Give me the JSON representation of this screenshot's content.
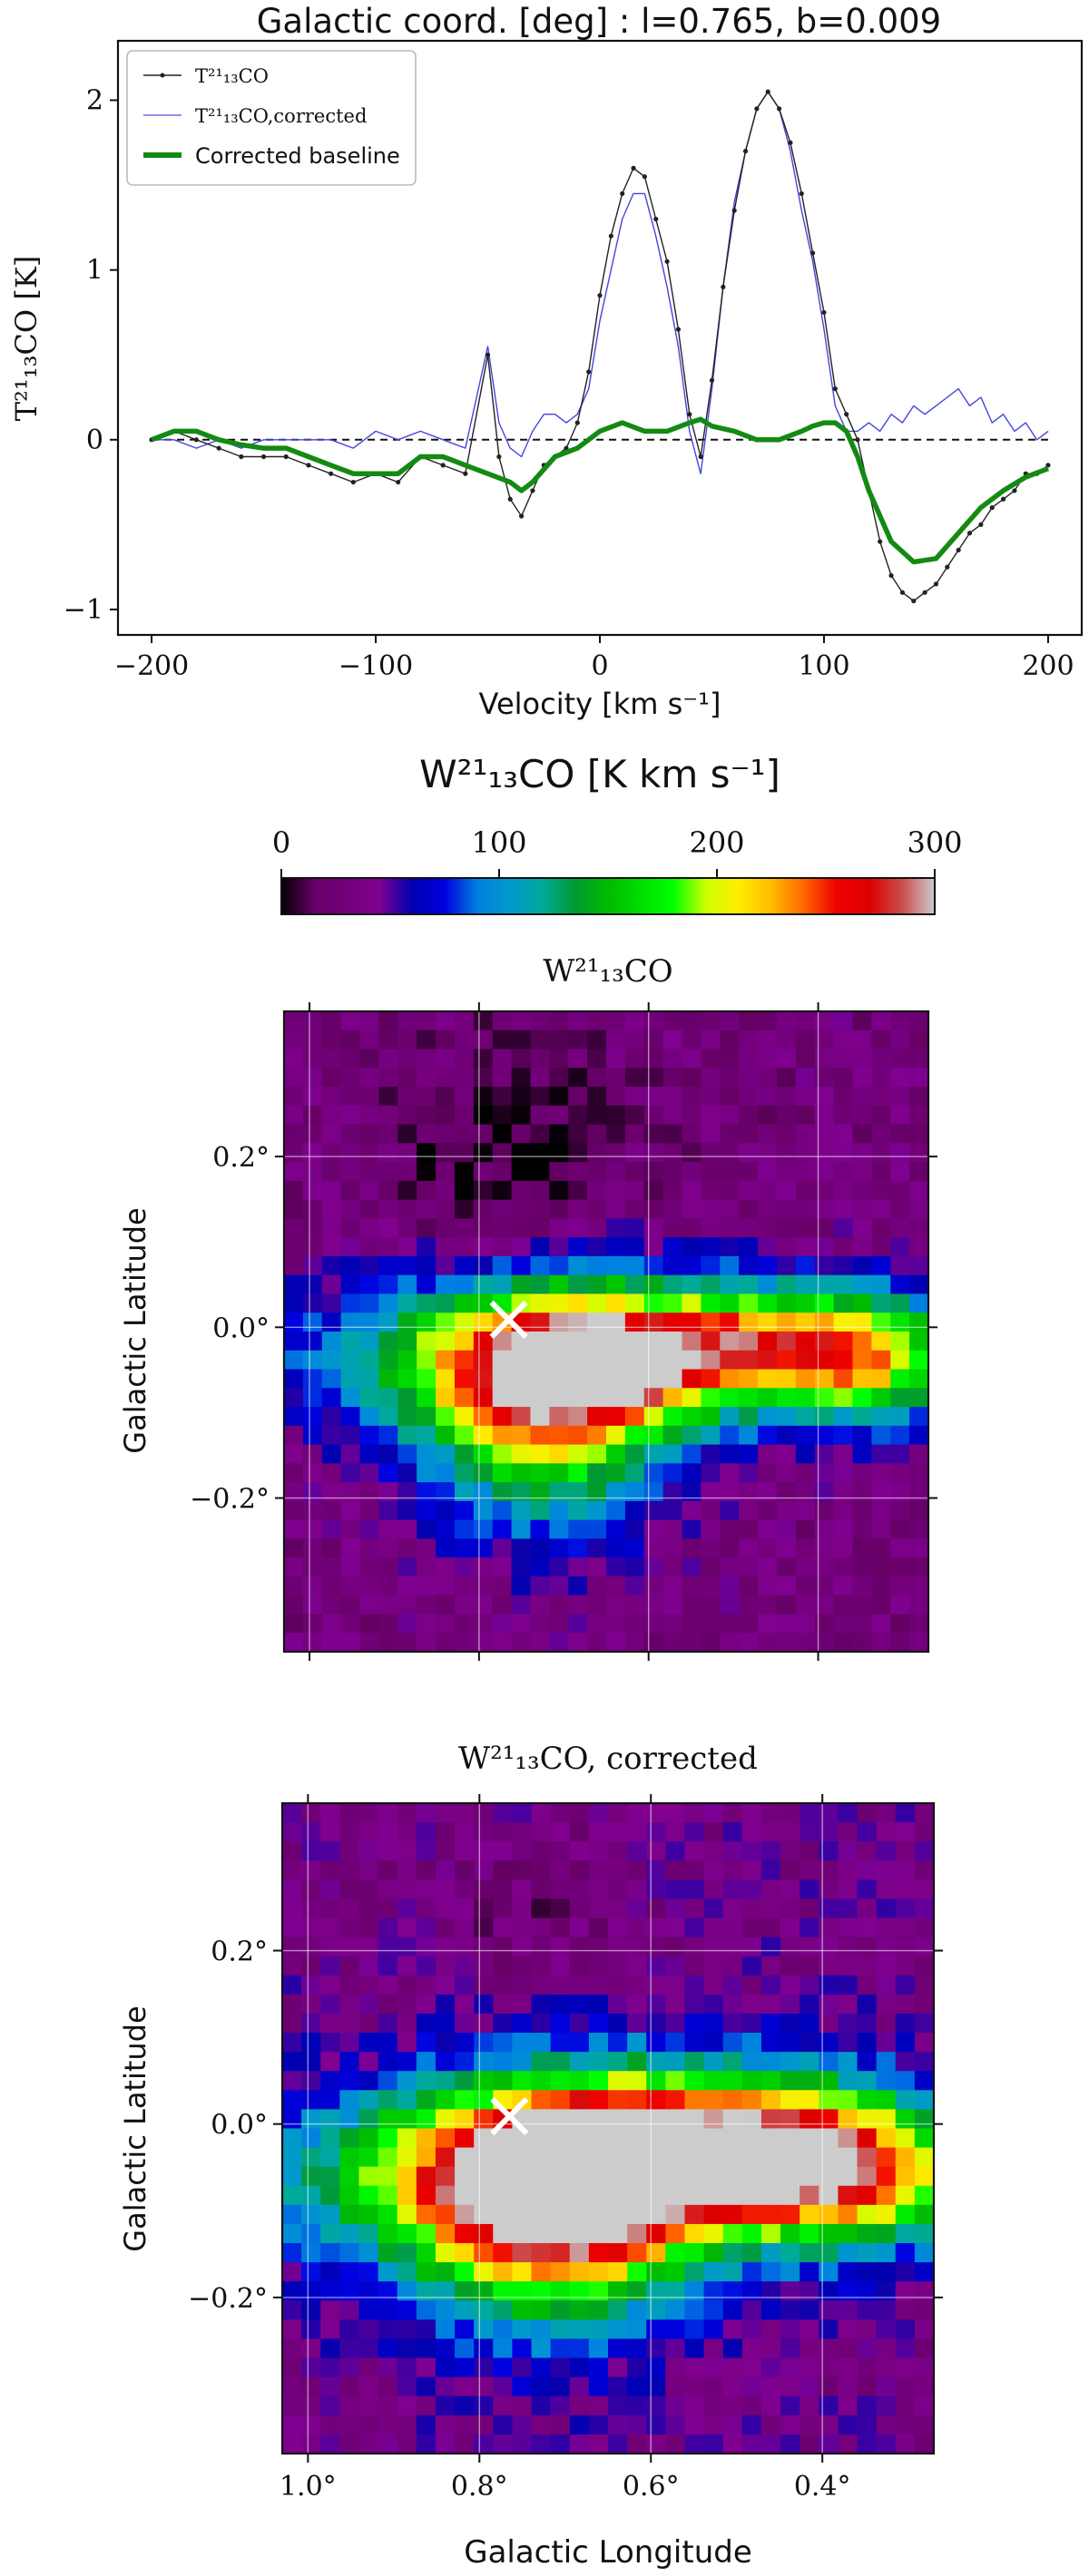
{
  "chart_data": [
    {
      "type": "line",
      "title": "Galactic coord. [deg] : l=0.765, b=0.009",
      "xlabel": "Velocity [km s⁻¹]",
      "ylabel": "T²¹₁₃CO [K]",
      "xlim": [
        -215,
        215
      ],
      "ylim": [
        -1.15,
        2.35
      ],
      "xticks": [
        -200,
        -100,
        0,
        100,
        200
      ],
      "xtick_labels": [
        "−200",
        "−100",
        "0",
        "100",
        "200"
      ],
      "yticks": [
        -1,
        0,
        1,
        2
      ],
      "ytick_labels": [
        "−1",
        "0",
        "1",
        "2"
      ],
      "legend": {
        "placement": "upper-left",
        "entries": [
          "T²¹₁₃CO",
          "T²¹₁₃CO,corrected",
          "Corrected baseline"
        ]
      },
      "zero_line": 0,
      "series": [
        {
          "name": "T²¹₁₃CO",
          "color": "#222222",
          "style": "thin line with dot markers",
          "x": [
            -200,
            -190,
            -180,
            -170,
            -160,
            -150,
            -140,
            -130,
            -120,
            -110,
            -100,
            -90,
            -80,
            -70,
            -60,
            -50,
            -45,
            -40,
            -35,
            -30,
            -25,
            -20,
            -15,
            -10,
            -5,
            0,
            5,
            10,
            15,
            20,
            25,
            30,
            35,
            40,
            45,
            50,
            55,
            60,
            65,
            70,
            75,
            80,
            85,
            90,
            95,
            100,
            105,
            110,
            115,
            120,
            125,
            130,
            135,
            140,
            145,
            150,
            155,
            160,
            165,
            170,
            175,
            180,
            185,
            190,
            195,
            200
          ],
          "y": [
            0.0,
            0.05,
            0.0,
            -0.05,
            -0.1,
            -0.1,
            -0.1,
            -0.15,
            -0.2,
            -0.25,
            -0.2,
            -0.25,
            -0.1,
            -0.15,
            -0.2,
            0.5,
            -0.1,
            -0.35,
            -0.45,
            -0.3,
            -0.15,
            -0.1,
            -0.05,
            0.1,
            0.4,
            0.85,
            1.2,
            1.45,
            1.6,
            1.55,
            1.3,
            1.05,
            0.65,
            0.15,
            -0.1,
            0.35,
            0.9,
            1.35,
            1.7,
            1.95,
            2.05,
            1.95,
            1.75,
            1.45,
            1.1,
            0.75,
            0.3,
            0.15,
            0.0,
            -0.3,
            -0.6,
            -0.8,
            -0.9,
            -0.95,
            -0.9,
            -0.85,
            -0.75,
            -0.65,
            -0.55,
            -0.5,
            -0.4,
            -0.35,
            -0.3,
            -0.2,
            -0.2,
            -0.15
          ]
        },
        {
          "name": "T²¹₁₃CO,corrected",
          "color": "#4444dd",
          "style": "thin line",
          "x": [
            -200,
            -190,
            -180,
            -170,
            -160,
            -150,
            -140,
            -130,
            -120,
            -110,
            -100,
            -90,
            -80,
            -70,
            -60,
            -50,
            -45,
            -40,
            -35,
            -30,
            -25,
            -20,
            -15,
            -10,
            -5,
            0,
            5,
            10,
            15,
            20,
            25,
            30,
            35,
            40,
            45,
            50,
            55,
            60,
            65,
            70,
            75,
            80,
            85,
            90,
            95,
            100,
            105,
            110,
            115,
            120,
            125,
            130,
            135,
            140,
            145,
            150,
            155,
            160,
            165,
            170,
            175,
            180,
            185,
            190,
            195,
            200
          ],
          "y": [
            0.0,
            0.0,
            -0.05,
            0.0,
            -0.05,
            0.0,
            0.0,
            0.0,
            0.0,
            -0.05,
            0.05,
            0.0,
            0.05,
            0.0,
            -0.05,
            0.55,
            0.1,
            -0.05,
            -0.1,
            0.05,
            0.15,
            0.15,
            0.1,
            0.15,
            0.3,
            0.7,
            1.0,
            1.3,
            1.45,
            1.45,
            1.2,
            0.9,
            0.55,
            0.05,
            -0.2,
            0.3,
            0.9,
            1.4,
            1.7,
            1.95,
            2.05,
            1.95,
            1.7,
            1.35,
            1.05,
            0.65,
            0.2,
            0.05,
            0.05,
            0.1,
            0.05,
            0.15,
            0.1,
            0.2,
            0.15,
            0.2,
            0.25,
            0.3,
            0.2,
            0.25,
            0.1,
            0.15,
            0.05,
            0.1,
            0.0,
            0.05
          ]
        },
        {
          "name": "Corrected baseline",
          "color": "#138a13",
          "style": "thick line",
          "x": [
            -200,
            -190,
            -180,
            -170,
            -160,
            -150,
            -140,
            -130,
            -120,
            -110,
            -100,
            -90,
            -80,
            -70,
            -60,
            -50,
            -40,
            -35,
            -30,
            -20,
            -10,
            0,
            10,
            20,
            30,
            40,
            45,
            50,
            60,
            70,
            80,
            90,
            95,
            100,
            105,
            110,
            115,
            120,
            130,
            140,
            150,
            160,
            170,
            180,
            190,
            200
          ],
          "y": [
            0.0,
            0.05,
            0.05,
            0.0,
            -0.03,
            -0.05,
            -0.05,
            -0.1,
            -0.15,
            -0.2,
            -0.2,
            -0.2,
            -0.1,
            -0.1,
            -0.15,
            -0.2,
            -0.25,
            -0.3,
            -0.25,
            -0.1,
            -0.05,
            0.05,
            0.1,
            0.05,
            0.05,
            0.1,
            0.12,
            0.08,
            0.05,
            0.0,
            0.0,
            0.05,
            0.08,
            0.1,
            0.1,
            0.05,
            -0.1,
            -0.3,
            -0.6,
            -0.72,
            -0.7,
            -0.55,
            -0.4,
            -0.3,
            -0.22,
            -0.17
          ]
        }
      ]
    },
    {
      "type": "heatmap",
      "role": "colorbar",
      "label": "W²¹₁₃CO [K km s⁻¹]",
      "range": [
        0,
        300
      ],
      "ticks": [
        0,
        100,
        200,
        300
      ],
      "colormap": "nipy_spectral"
    },
    {
      "type": "heatmap",
      "title": "W²¹₁₃CO",
      "xlabel": "",
      "ylabel": "Galactic Latitude",
      "xlim": [
        1.03,
        0.27
      ],
      "ylim": [
        -0.38,
        0.37
      ],
      "x_grid_lines": [
        1.0,
        0.8,
        0.6,
        0.4
      ],
      "yticks": [
        0.2,
        0.0,
        -0.2
      ],
      "ytick_labels": [
        "0.2°",
        "0.0°",
        "−0.2°"
      ],
      "marker": {
        "symbol": "x",
        "l": 0.765,
        "b": 0.009,
        "color": "#ffffff"
      },
      "grid": true,
      "value_range": [
        0,
        300
      ],
      "features": [
        {
          "l": 0.7,
          "b": -0.04,
          "dl": 0.16,
          "db": 0.1,
          "v": 150
        },
        {
          "l": 0.66,
          "b": -0.05,
          "dl": 0.06,
          "db": 0.035,
          "v": 125
        },
        {
          "l": 0.58,
          "b": -0.03,
          "dl": 0.25,
          "db": 0.07,
          "v": 100
        },
        {
          "l": 0.45,
          "b": -0.02,
          "dl": 0.18,
          "db": 0.07,
          "v": 135
        },
        {
          "l": 0.72,
          "b": -0.13,
          "dl": 0.14,
          "db": 0.12,
          "v": 120
        },
        {
          "l": 0.88,
          "b": -0.04,
          "dl": 0.2,
          "db": 0.09,
          "v": 60
        },
        {
          "l": 0.33,
          "b": -0.05,
          "dl": 0.1,
          "db": 0.08,
          "v": 90
        }
      ],
      "background": 30,
      "dark_regions": [
        {
          "l": 0.76,
          "b": 0.2,
          "dl": 0.13,
          "db": 0.13,
          "v": -26
        }
      ]
    },
    {
      "type": "heatmap",
      "title": "W²¹₁₃CO, corrected",
      "xlabel": "Galactic Longitude",
      "ylabel": "Galactic Latitude",
      "xlim": [
        1.03,
        0.27
      ],
      "ylim": [
        -0.38,
        0.37
      ],
      "xticks": [
        1.0,
        0.8,
        0.6,
        0.4
      ],
      "xtick_labels": [
        "1.0°",
        "0.8°",
        "0.6°",
        "0.4°"
      ],
      "yticks": [
        0.2,
        0.0,
        -0.2
      ],
      "ytick_labels": [
        "0.2°",
        "0.0°",
        "−0.2°"
      ],
      "marker": {
        "symbol": "x",
        "l": 0.765,
        "b": 0.009,
        "color": "#ffffff"
      },
      "grid": true,
      "value_range": [
        0,
        300
      ],
      "features": [
        {
          "l": 0.68,
          "b": -0.05,
          "dl": 0.17,
          "db": 0.11,
          "v": 195
        },
        {
          "l": 0.68,
          "b": -0.03,
          "dl": 0.07,
          "db": 0.035,
          "v": 110
        },
        {
          "l": 0.57,
          "b": -0.04,
          "dl": 0.27,
          "db": 0.08,
          "v": 120
        },
        {
          "l": 0.45,
          "b": -0.03,
          "dl": 0.17,
          "db": 0.09,
          "v": 150
        },
        {
          "l": 0.72,
          "b": -0.13,
          "dl": 0.16,
          "db": 0.12,
          "v": 135
        },
        {
          "l": 0.9,
          "b": -0.06,
          "dl": 0.2,
          "db": 0.1,
          "v": 80
        },
        {
          "l": 0.35,
          "b": -0.07,
          "dl": 0.12,
          "db": 0.08,
          "v": 100
        }
      ],
      "background": 38,
      "dark_regions": [
        {
          "l": 0.74,
          "b": 0.24,
          "dl": 0.12,
          "db": 0.1,
          "v": -14
        }
      ]
    }
  ]
}
